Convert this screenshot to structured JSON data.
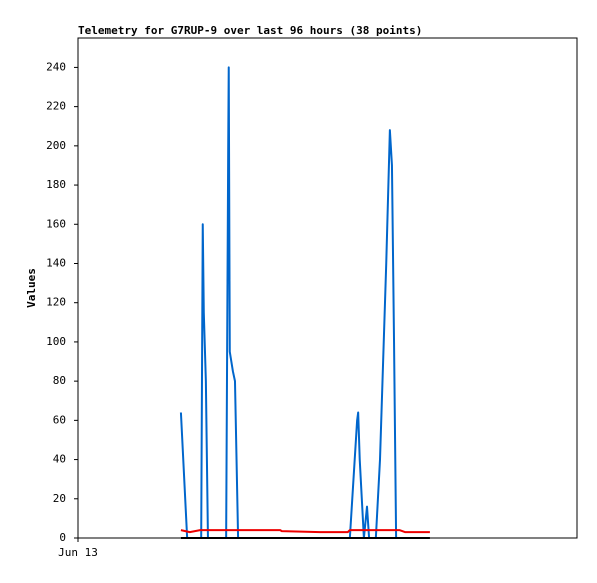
{
  "chart_data": {
    "type": "line",
    "title": "Telemetry for G7RUP-9 over last 96 hours (38 points)",
    "y_label": "Values",
    "xlim": [
      0,
      96
    ],
    "xticks": [
      {
        "value": 0,
        "label": "Jun 13"
      }
    ],
    "ylim": [
      0,
      255
    ],
    "yticks": [
      0,
      20,
      40,
      60,
      80,
      100,
      120,
      140,
      160,
      180,
      200,
      220,
      240
    ],
    "grid": false,
    "series": [
      {
        "color": "#0066cc",
        "x": [
          19.8,
          21.0,
          23.7,
          24.0,
          24.2,
          24.6,
          25.0,
          28.5,
          28.9,
          29.0,
          29.2,
          29.8,
          30.2,
          30.8,
          52.3,
          53.7,
          53.9,
          54.2,
          55.0,
          55.6,
          56.0,
          57.3,
          58.1,
          59.3,
          60.0,
          60.4,
          60.8,
          61.2
        ],
        "values": [
          64,
          0,
          0,
          160,
          115,
          80,
          0,
          0,
          200,
          240,
          95,
          85,
          80,
          0,
          0,
          60,
          64,
          40,
          0,
          16,
          0,
          0,
          40,
          140,
          208,
          190,
          100,
          0
        ]
      },
      {
        "color": "#ee0000",
        "x": [
          19.8,
          21.5,
          23.5,
          38.9,
          39.2,
          46.6,
          51.9,
          52.3,
          61.9,
          62.9,
          67.7
        ],
        "values": [
          4,
          3,
          4,
          4,
          3.5,
          3,
          3,
          4,
          4,
          3,
          3
        ]
      },
      {
        "color": "#000000",
        "x": [
          19.8,
          67.7
        ],
        "values": [
          0,
          0
        ]
      }
    ]
  }
}
